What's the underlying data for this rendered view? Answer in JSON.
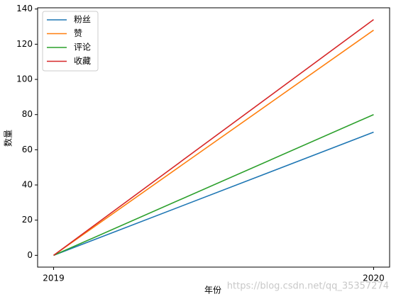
{
  "chart_data": {
    "type": "line",
    "x_label": "年份",
    "y_label": "数量",
    "x": [
      2019,
      2020
    ],
    "series": [
      {
        "name": "粉丝",
        "color": "#1f77b4",
        "values": [
          0,
          70
        ]
      },
      {
        "name": "赞",
        "color": "#ff7f0e",
        "values": [
          0,
          128
        ]
      },
      {
        "name": "评论",
        "color": "#2ca02c",
        "values": [
          0,
          80
        ]
      },
      {
        "name": "收藏",
        "color": "#d62728",
        "values": [
          0,
          134
        ]
      }
    ],
    "xlim": [
      2018.95,
      2020.05
    ],
    "xticks": [
      2019,
      2020
    ],
    "ylim": [
      -6.7,
      140.7
    ],
    "yticks": [
      0,
      20,
      40,
      60,
      80,
      100,
      120,
      140
    ],
    "grid": false,
    "legend": "upper-left",
    "watermark": "https://blog.csdn.net/qq_35357274"
  }
}
